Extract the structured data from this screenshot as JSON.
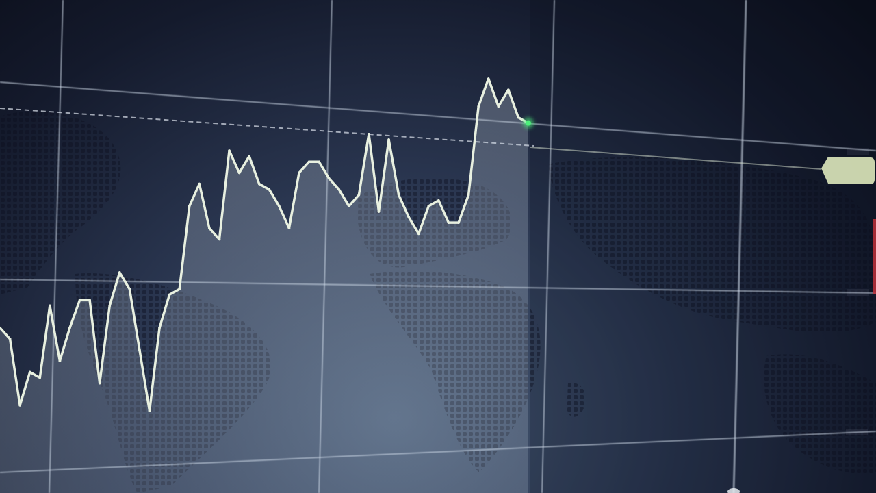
{
  "colors": {
    "line": "#e8f0e0",
    "area": "rgba(200,215,225,0.22)",
    "grid": "rgba(210,220,235,0.55)",
    "dashed_level": "rgba(220,225,235,0.7)",
    "marker": "#4cf07a",
    "price_tag": "#d9e4b8",
    "sell_marker": "#c0303a"
  },
  "chart_data": {
    "type": "line",
    "title": "",
    "xlabel": "",
    "ylabel": "",
    "grid": true,
    "series": [
      {
        "values": [
          42,
          40,
          28,
          34,
          33,
          46,
          36,
          42,
          47,
          47,
          32,
          46,
          52,
          49,
          38,
          27,
          42,
          48,
          49,
          64,
          68,
          60,
          58,
          74,
          70,
          73,
          68,
          67,
          64,
          60,
          70,
          72,
          72,
          69,
          67,
          64,
          66,
          77,
          63,
          76,
          66,
          62,
          59,
          64,
          65,
          61,
          61,
          66,
          82,
          87,
          82,
          85,
          80,
          79
        ]
      }
    ],
    "current_price_tag": "",
    "markers": [
      "current-point",
      "price-tag",
      "dashed-level"
    ]
  }
}
